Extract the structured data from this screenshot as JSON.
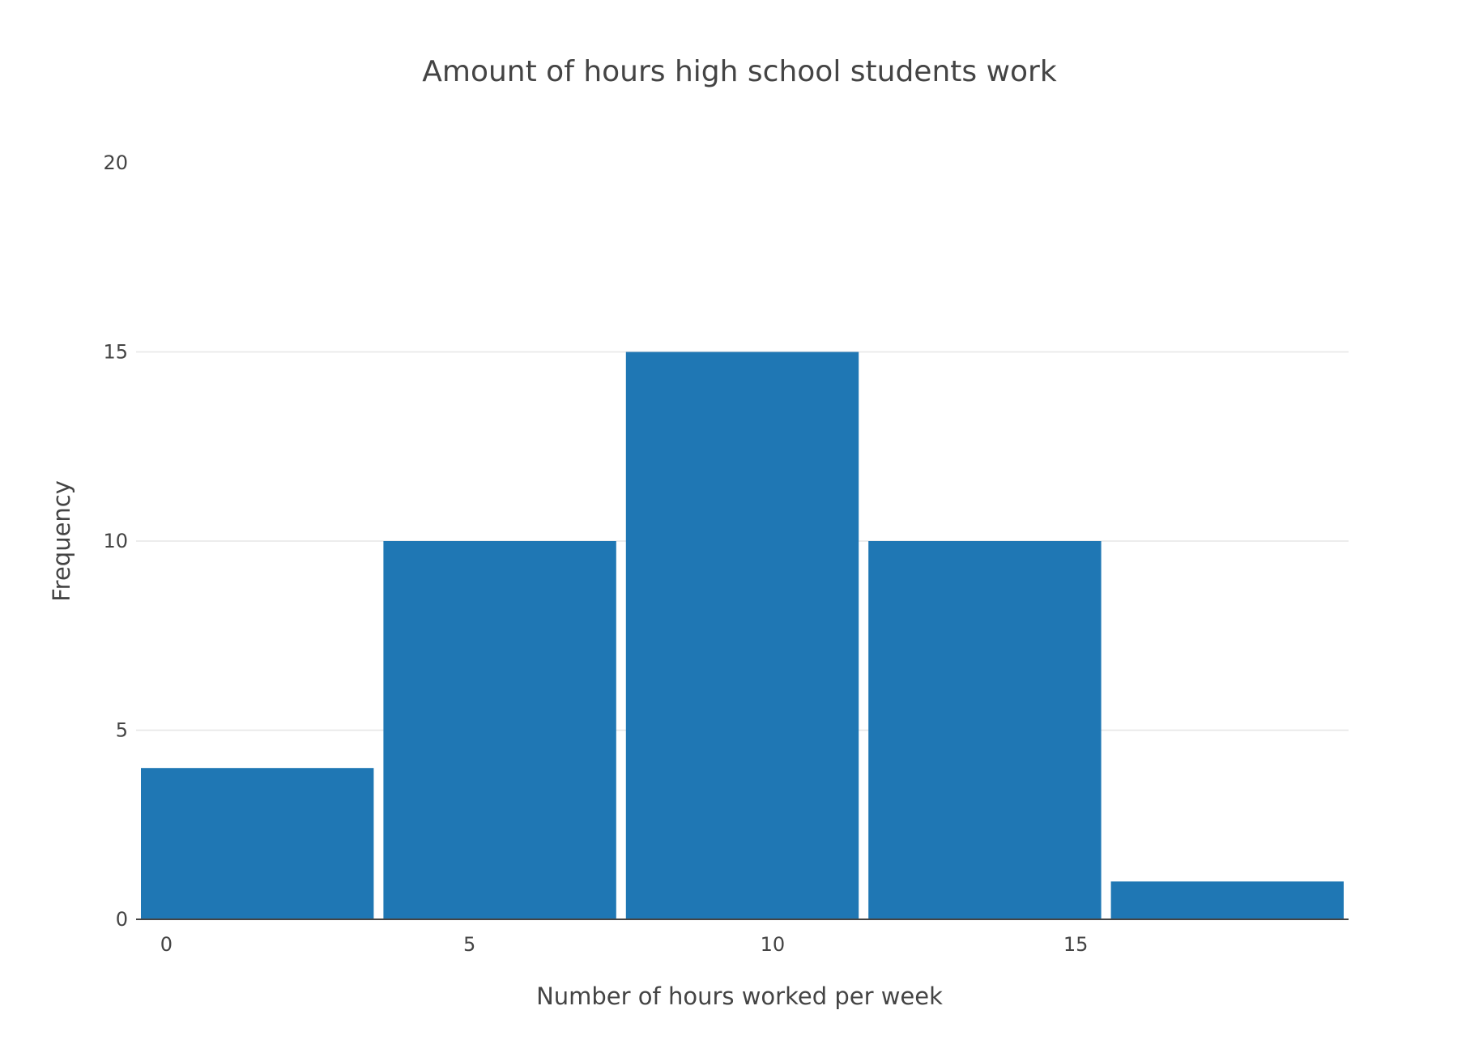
{
  "chart_data": {
    "type": "bar",
    "title": "Amount of hours high school students work",
    "xlabel": "Number of hours worked per week",
    "ylabel": "Frequency",
    "bins": [
      {
        "start": -0.5,
        "end": 3.5,
        "value": 4
      },
      {
        "start": 3.5,
        "end": 7.5,
        "value": 10
      },
      {
        "start": 7.5,
        "end": 11.5,
        "value": 15
      },
      {
        "start": 11.5,
        "end": 15.5,
        "value": 10
      },
      {
        "start": 15.5,
        "end": 19.5,
        "value": 1
      }
    ],
    "xlim": [
      -0.5,
      19.5
    ],
    "ylim": [
      0,
      20
    ],
    "xticks": [
      0,
      5,
      10,
      15
    ],
    "yticks": [
      0,
      5,
      10,
      15,
      20
    ],
    "grid": true,
    "colors": {
      "bar": "#1f77b4"
    }
  }
}
